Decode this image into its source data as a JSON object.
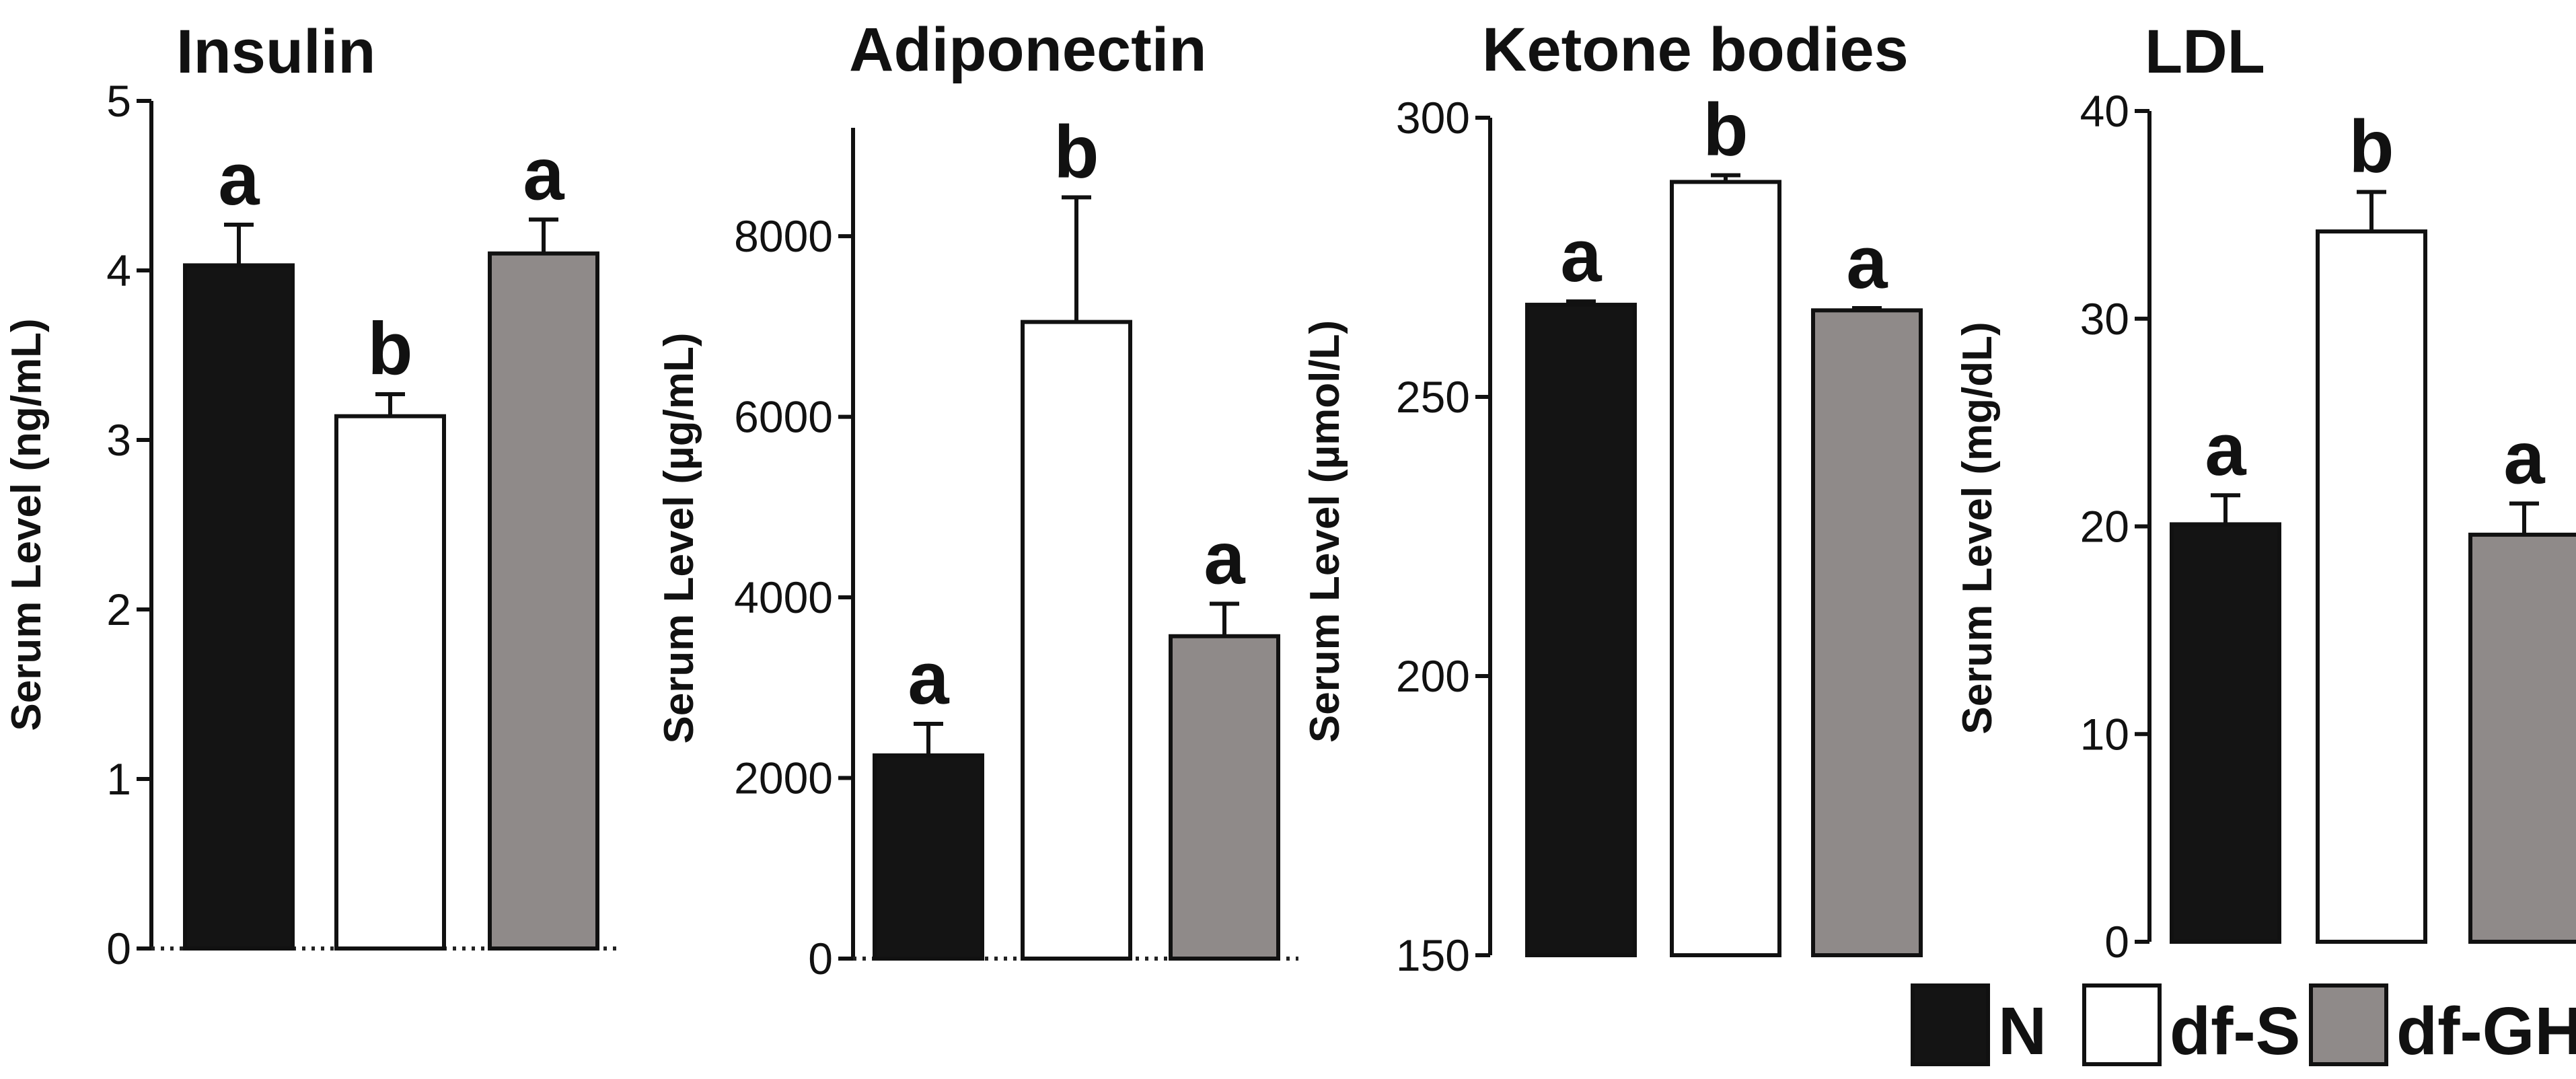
{
  "chart_data": [
    {
      "type": "bar",
      "title": "Insulin",
      "ylabel": "Serum Level (ng/mL)",
      "categories": [
        "N",
        "df-S",
        "df-GH"
      ],
      "values": [
        4.03,
        3.14,
        4.1
      ],
      "errors": [
        0.24,
        0.13,
        0.2
      ],
      "letters": [
        "a",
        "b",
        "a"
      ],
      "ylim": [
        0,
        5
      ],
      "yticks": [
        0,
        1,
        2,
        3,
        4,
        5
      ],
      "ytick_labels": [
        "0",
        "1",
        "2",
        "3",
        "4",
        "5"
      ],
      "colors": [
        "#141414",
        "#ffffff",
        "#8f8a89"
      ]
    },
    {
      "type": "bar",
      "title": "Adiponectin",
      "ylabel": "Serum Level (µg/mL)",
      "categories": [
        "N",
        "df-S",
        "df-GH"
      ],
      "values": [
        2250,
        7050,
        3570
      ],
      "errors": [
        350,
        1380,
        360
      ],
      "letters": [
        "a",
        "b",
        "a"
      ],
      "ylim": [
        0,
        9200
      ],
      "yticks": [
        0,
        2000,
        4000,
        6000,
        8000
      ],
      "ytick_labels": [
        "0",
        "2000",
        "4000",
        "6000",
        "8000"
      ],
      "colors": [
        "#141414",
        "#ffffff",
        "#8f8a89"
      ]
    },
    {
      "type": "bar",
      "title": "Ketone bodies",
      "ylabel": "Serum Level (µmol/L)",
      "categories": [
        "N",
        "df-S",
        "df-GH"
      ],
      "values": [
        266.5,
        288.5,
        265.5
      ],
      "errors": [
        0.6,
        1.2,
        0.4
      ],
      "letters": [
        "a",
        "b",
        "a"
      ],
      "ylim": [
        150,
        300
      ],
      "yticks": [
        150,
        200,
        250,
        300
      ],
      "ytick_labels": [
        "150",
        "200",
        "250",
        "300"
      ],
      "colors": [
        "#141414",
        "#ffffff",
        "#8f8a89"
      ]
    },
    {
      "type": "bar",
      "title": "LDL",
      "ylabel": "Serum Level (mg/dL)",
      "categories": [
        "N",
        "df-S",
        "df-GH"
      ],
      "values": [
        20.1,
        34.2,
        19.6
      ],
      "errors": [
        1.4,
        1.9,
        1.5
      ],
      "letters": [
        "a",
        "b",
        "a"
      ],
      "ylim": [
        0,
        40
      ],
      "yticks": [
        0,
        10,
        20,
        30,
        40
      ],
      "ytick_labels": [
        "0",
        "10",
        "20",
        "30",
        "40"
      ],
      "colors": [
        "#141414",
        "#ffffff",
        "#8f8a89"
      ]
    }
  ],
  "legend": {
    "items": [
      {
        "label": "N",
        "color": "#141414"
      },
      {
        "label": "df-S",
        "color": "#ffffff"
      },
      {
        "label": "df-GH",
        "color": "#8f8a89"
      }
    ]
  }
}
